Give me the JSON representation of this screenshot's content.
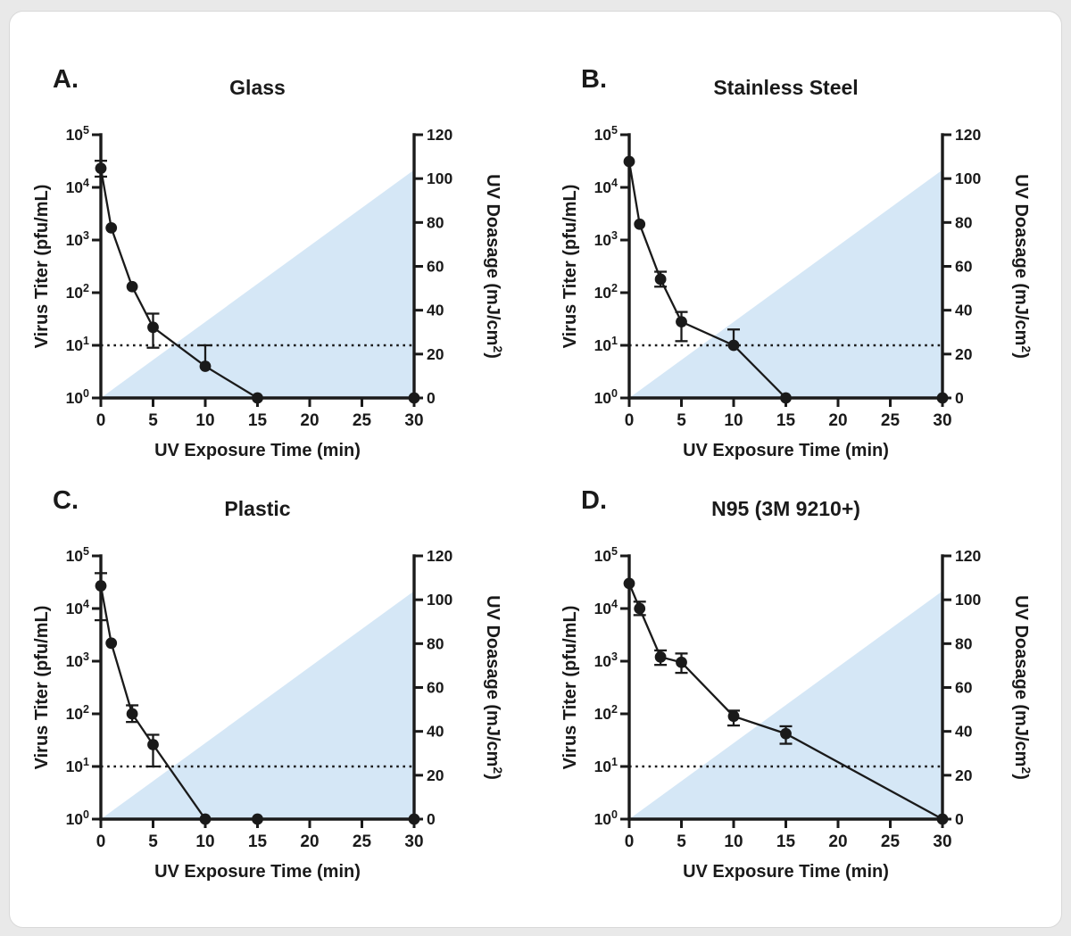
{
  "page": {
    "background": "#e9e9e9",
    "card_background": "#ffffff",
    "card_border": "#d8d8d8"
  },
  "colors": {
    "ink": "#1a1a1a",
    "uv_fill": "#d5e7f6"
  },
  "shared": {
    "x_label": "UV Exposure Time (min)",
    "y_left_label": "Virus Titer (pfu/mL)",
    "y_right_label": "UV Doasage (mJ/cm^2)",
    "x_range": [
      0,
      30
    ],
    "x_ticks": [
      0,
      5,
      10,
      15,
      20,
      25,
      30
    ],
    "left_axis_decades": 5,
    "left_tick_exponents": [
      0,
      1,
      2,
      3,
      4,
      5
    ],
    "right_axis_range": [
      0,
      120
    ],
    "right_ticks": [
      0,
      20,
      40,
      60,
      80,
      100,
      120
    ],
    "detection_limit_titer": 10,
    "uv_dosage_series": {
      "x": [
        0,
        30
      ],
      "dosage": [
        0,
        104
      ]
    }
  },
  "chart_data": [
    {
      "type": "line",
      "panel_label": "A.",
      "title": "Glass",
      "x": [
        0,
        1,
        3,
        5,
        10,
        15,
        30
      ],
      "y": [
        23000,
        1700,
        130,
        22,
        4,
        1,
        1
      ],
      "y_err_low": [
        16000,
        1700,
        130,
        9,
        4,
        1,
        1
      ],
      "y_err_high": [
        32000,
        1700,
        130,
        40,
        10,
        1,
        1
      ]
    },
    {
      "type": "line",
      "panel_label": "B.",
      "title": "Stainless Steel",
      "x": [
        0,
        1,
        3,
        5,
        10,
        15,
        30
      ],
      "y": [
        31000,
        2000,
        180,
        28,
        10,
        1,
        1
      ],
      "y_err_low": [
        31000,
        2000,
        130,
        12,
        10,
        1,
        1
      ],
      "y_err_high": [
        31000,
        2000,
        250,
        43,
        20,
        1,
        1
      ]
    },
    {
      "type": "line",
      "panel_label": "C.",
      "title": "Plastic",
      "x": [
        0,
        1,
        3,
        5,
        10,
        15,
        30
      ],
      "y": [
        27000,
        2200,
        100,
        26,
        1,
        1,
        1
      ],
      "y_err_low": [
        6000,
        2200,
        70,
        10,
        1,
        1,
        1
      ],
      "y_err_high": [
        47000,
        2200,
        145,
        40,
        1,
        1,
        1
      ]
    },
    {
      "type": "line",
      "panel_label": "D.",
      "title": "N95 (3M 9210+)",
      "x": [
        0,
        1,
        3,
        5,
        10,
        15,
        30
      ],
      "y": [
        30000,
        10000,
        1200,
        950,
        90,
        42,
        1
      ],
      "y_err_low": [
        30000,
        7500,
        850,
        600,
        60,
        27,
        1
      ],
      "y_err_high": [
        30000,
        13500,
        1600,
        1400,
        115,
        58,
        1
      ]
    }
  ]
}
